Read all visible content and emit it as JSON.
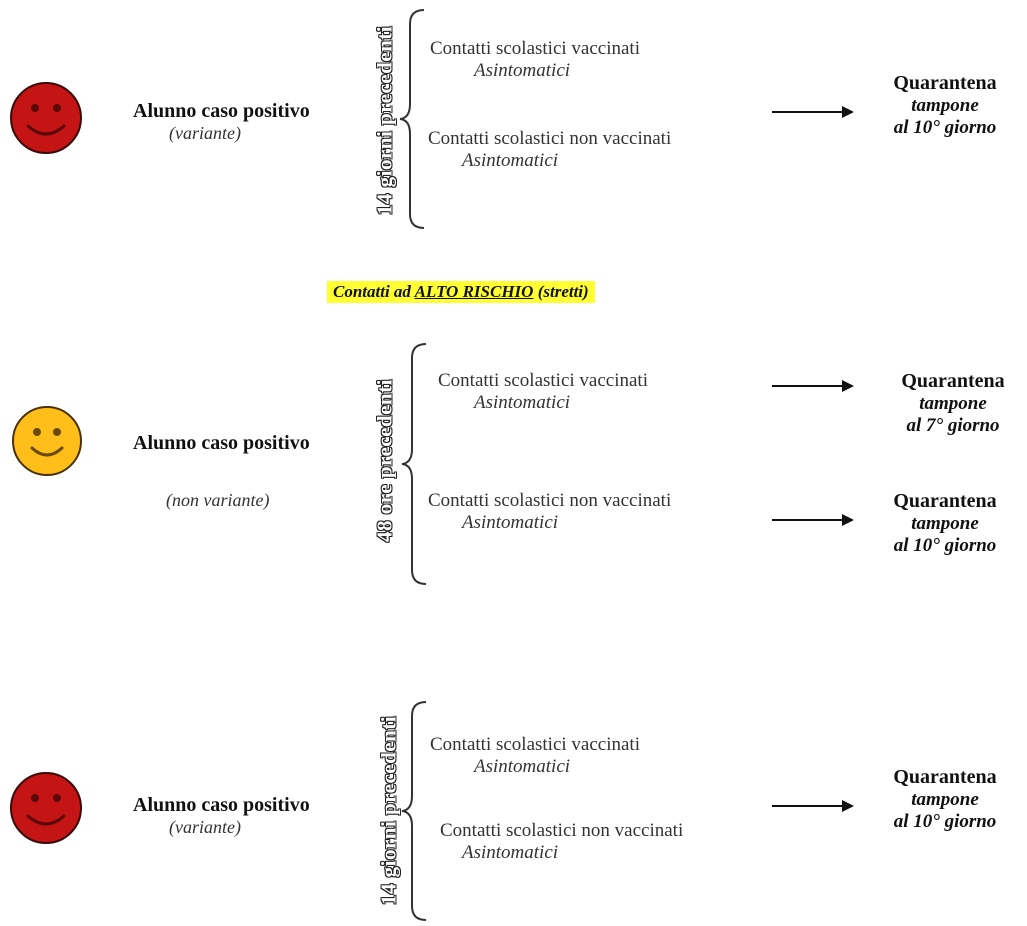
{
  "colors": {
    "red_face": "#c41414",
    "yellow_face": "#ffbe1a",
    "highlight": "#ffff33"
  },
  "banner": {
    "prefix": "Contatti ad",
    "emph": "ALTO RISCHIO",
    "suffix": "(stretti)"
  },
  "blocks": [
    {
      "smiley": "red-smiley-icon",
      "case_title": "Alunno caso positivo",
      "case_sub": "(variante)",
      "period": "14 giorni precedenti",
      "contacts": [
        {
          "main": "Contatti scolastici vaccinati",
          "sub": "Asintomatici"
        },
        {
          "main": "Contatti scolastici non vaccinati",
          "sub": "Asintomatici"
        }
      ],
      "outcomes": [
        {
          "title": "Quarantena",
          "line1": "tampone",
          "line2": "al 10° giorno"
        }
      ]
    },
    {
      "smiley": "yellow-smiley-icon",
      "case_title": "Alunno caso positivo",
      "case_sub": "(non variante)",
      "period": "48 ore precedenti",
      "contacts": [
        {
          "main": "Contatti scolastici vaccinati",
          "sub": "Asintomatici"
        },
        {
          "main": "Contatti scolastici non vaccinati",
          "sub": "Asintomatici"
        }
      ],
      "outcomes": [
        {
          "title": "Quarantena",
          "line1": "tampone",
          "line2": "al 7° giorno"
        },
        {
          "title": "Quarantena",
          "line1": "tampone",
          "line2": "al 10° giorno"
        }
      ]
    },
    {
      "smiley": "red-smiley-icon",
      "case_title": "Alunno caso positivo",
      "case_sub": "(variante)",
      "period": "14 giorni precedenti",
      "contacts": [
        {
          "main": "Contatti scolastici vaccinati",
          "sub": "Asintomatici"
        },
        {
          "main": "Contatti scolastici non vaccinati",
          "sub": "Asintomatici"
        }
      ],
      "outcomes": [
        {
          "title": "Quarantena",
          "line1": "tampone",
          "line2": "al 10° giorno"
        }
      ]
    }
  ]
}
